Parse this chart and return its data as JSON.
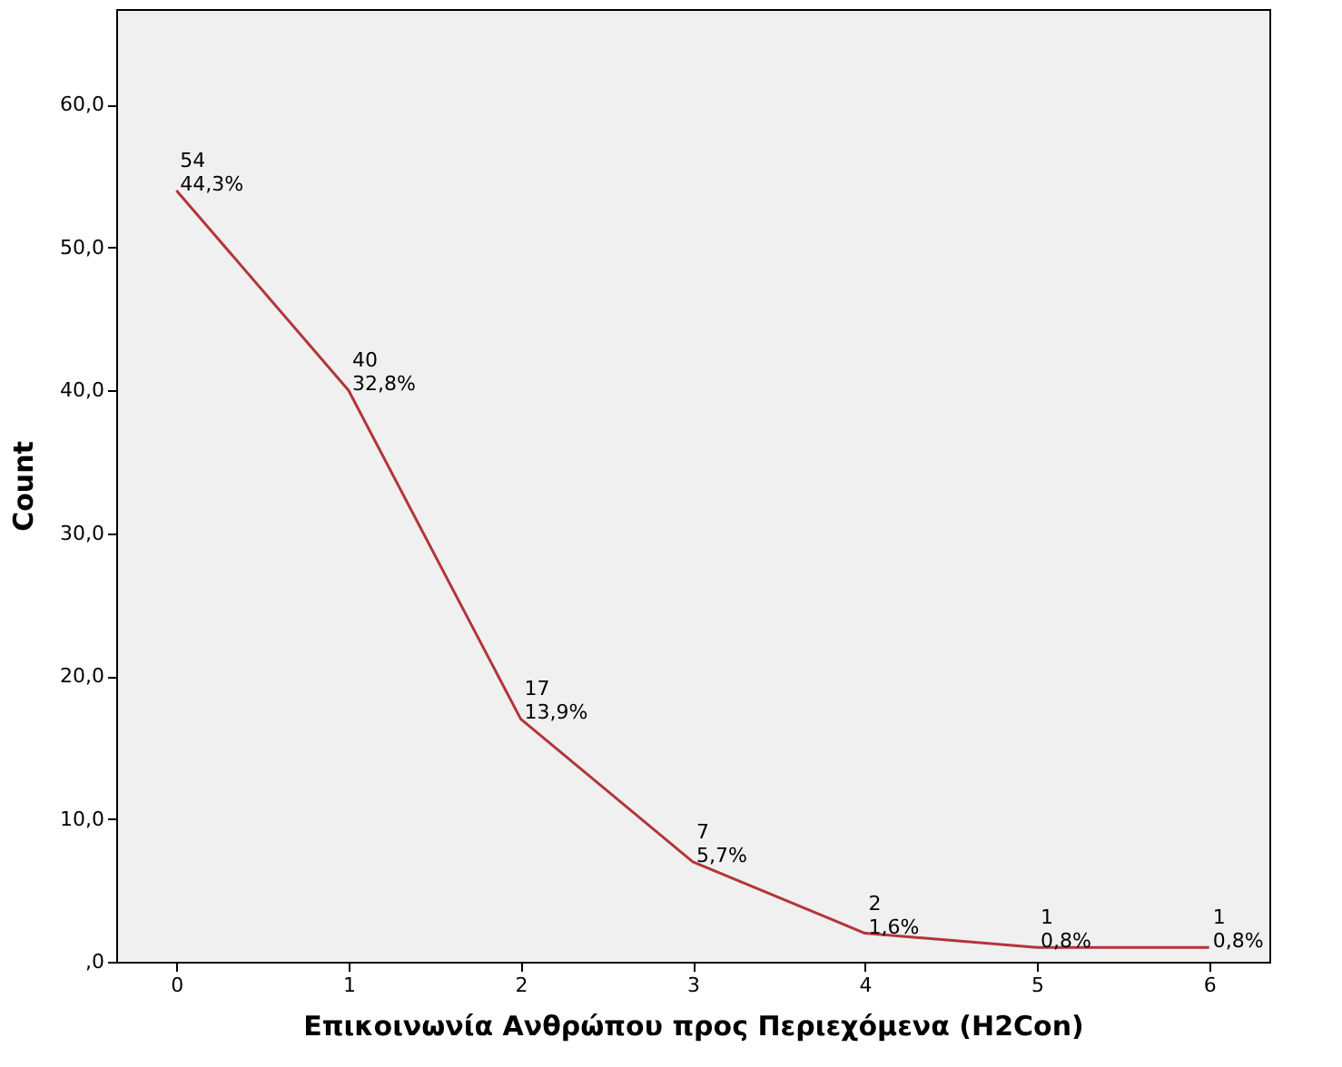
{
  "chart_data": {
    "type": "line",
    "xlabel": "Επικοινωνία Ανθρώπου προς Περιεχόμενα (H2Con)",
    "ylabel": "Count",
    "categories": [
      "0",
      "1",
      "2",
      "3",
      "4",
      "5",
      "6"
    ],
    "series": [
      {
        "color": "#b2353a",
        "values": [
          54,
          40,
          17,
          7,
          2,
          1,
          1
        ],
        "value_labels": [
          "54\n44,3%",
          "40\n32,8%",
          "17\n13,9%",
          "7\n5,7%",
          "2\n1,6%",
          "1\n0,8%",
          "1\n0,8%"
        ]
      }
    ],
    "ylim": [
      0,
      66.7
    ],
    "yticks": [
      {
        "value": 0,
        "label": ",0"
      },
      {
        "value": 10,
        "label": "10,0"
      },
      {
        "value": 20,
        "label": "20,0"
      },
      {
        "value": 30,
        "label": "30,0"
      },
      {
        "value": 40,
        "label": "40,0"
      },
      {
        "value": 50,
        "label": "50,0"
      },
      {
        "value": 60,
        "label": "60,0"
      }
    ],
    "grid": false,
    "marker": "none",
    "line_style": "solid"
  }
}
